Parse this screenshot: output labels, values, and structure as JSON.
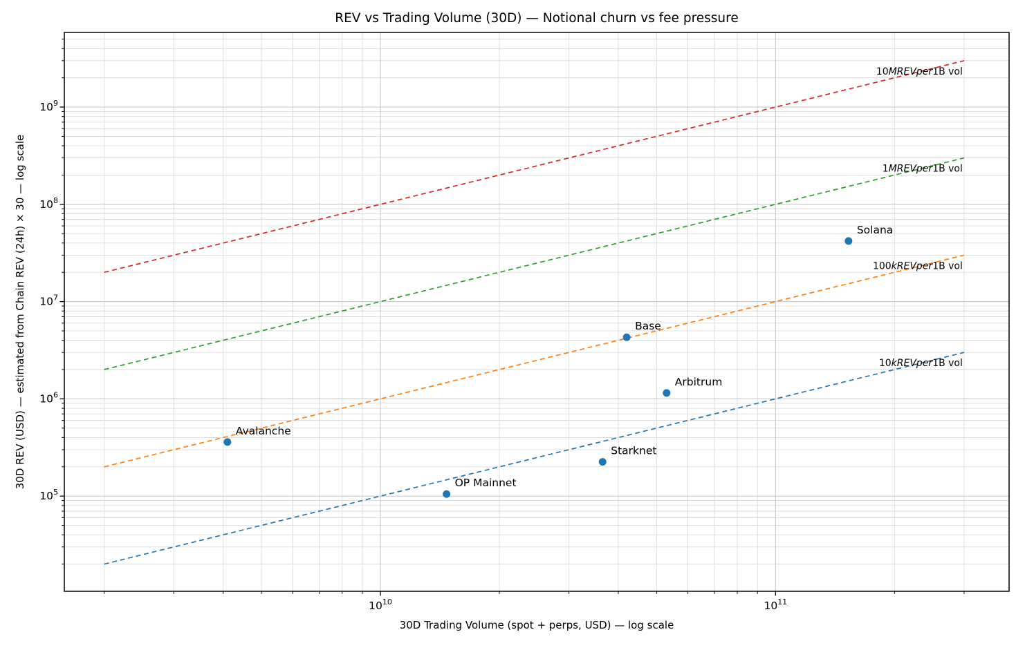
{
  "chart_data": {
    "type": "scatter",
    "title": "REV vs Trading Volume (30D) — Notional churn vs fee pressure",
    "xlabel": "30D Trading Volume (spot + perps, USD) — log scale",
    "ylabel": "30D REV (USD) — estimated from Chain REV (24h) × 30 — log scale",
    "xscale": "log",
    "yscale": "log",
    "xlim": [
      1585000000.0,
      390000000000.0
    ],
    "ylim": [
      10500.0,
      5850000000.0
    ],
    "grid": {
      "major": true,
      "minor": true,
      "major_color": "#c3c3c3",
      "minor_color": "#dadada"
    },
    "x_ticks": [
      {
        "value": 10000000000.0,
        "base": "10",
        "exp": "10"
      },
      {
        "value": 100000000000.0,
        "base": "10",
        "exp": "11"
      }
    ],
    "y_ticks": [
      {
        "value": 100000.0,
        "base": "10",
        "exp": "5"
      },
      {
        "value": 1000000.0,
        "base": "10",
        "exp": "6"
      },
      {
        "value": 10000000.0,
        "base": "10",
        "exp": "7"
      },
      {
        "value": 100000000.0,
        "base": "10",
        "exp": "8"
      },
      {
        "value": 1000000000.0,
        "base": "10",
        "exp": "9"
      }
    ],
    "marker_color": "#1f77b4",
    "points": [
      {
        "name": "Avalanche",
        "x": 4100000000.0,
        "y": 360000.0
      },
      {
        "name": "OP Mainnet",
        "x": 14700000000.0,
        "y": 105000.0
      },
      {
        "name": "Starknet",
        "x": 36500000000.0,
        "y": 225000.0
      },
      {
        "name": "Base",
        "x": 42000000000.0,
        "y": 4300000.0
      },
      {
        "name": "Arbitrum",
        "x": 53000000000.0,
        "y": 1150000.0
      },
      {
        "name": "Solana",
        "x": 153000000000.0,
        "y": 42000000.0
      }
    ],
    "ref_lines": [
      {
        "name": "10m-rev-per-1b-vol",
        "rev_per_1b_vol": 10000000.0,
        "x_start": 2000000000.0,
        "x_end": 300000000000.0,
        "color": "#d62728",
        "label": {
          "pre": "10",
          "italic": "MREVper",
          "post": "1B vol"
        }
      },
      {
        "name": "1m-rev-per-1b-vol",
        "rev_per_1b_vol": 1000000.0,
        "x_start": 2000000000.0,
        "x_end": 300000000000.0,
        "color": "#2ca02c",
        "label": {
          "pre": "1",
          "italic": "MREVper",
          "post": "1B vol"
        }
      },
      {
        "name": "100k-rev-per-1b-vol",
        "rev_per_1b_vol": 100000.0,
        "x_start": 2000000000.0,
        "x_end": 300000000000.0,
        "color": "#ff7f0e",
        "label": {
          "pre": "100",
          "italic": "kREVper",
          "post": "1B vol"
        }
      },
      {
        "name": "10k-rev-per-1b-vol",
        "rev_per_1b_vol": 10000.0,
        "x_start": 2000000000.0,
        "x_end": 300000000000.0,
        "color": "#1f77b4",
        "label": {
          "pre": "10",
          "italic": "kREVper",
          "post": "1B vol"
        }
      }
    ],
    "ref_label_anchor_x": 300000000000.0,
    "ref_label_mid_x": 220000000000.0
  }
}
